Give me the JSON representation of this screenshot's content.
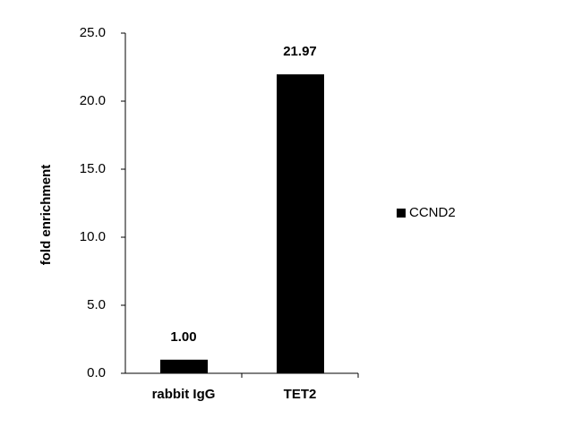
{
  "chart_data": {
    "type": "bar",
    "y_label": "fold enrichment",
    "categories": [
      "rabbit IgG",
      "TET2"
    ],
    "series": [
      {
        "name": "CCND2",
        "color": "#000000",
        "values": [
          1.0,
          21.97
        ],
        "value_labels": [
          "1.00",
          "21.97"
        ]
      }
    ],
    "ylim": [
      0,
      25
    ],
    "yticks": [
      {
        "value": 0,
        "label": "0.0"
      },
      {
        "value": 5,
        "label": "5.0"
      },
      {
        "value": 10,
        "label": "10.0"
      },
      {
        "value": 15,
        "label": "15.0"
      },
      {
        "value": 20,
        "label": "20.0"
      },
      {
        "value": 25,
        "label": "25.0"
      }
    ],
    "grid": false,
    "legend": "right"
  }
}
